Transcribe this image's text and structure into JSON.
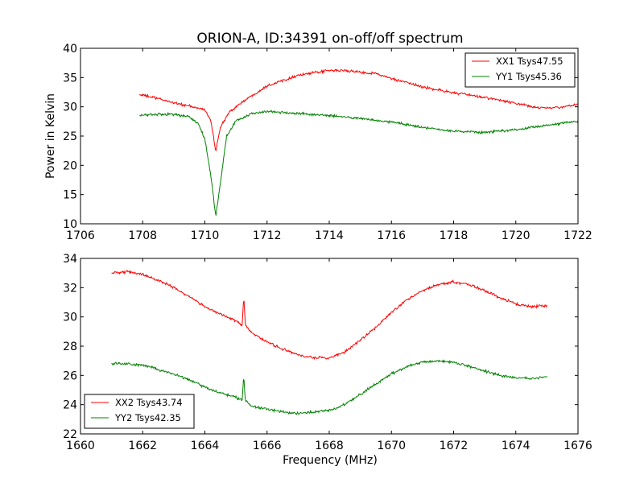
{
  "chart_data": [
    {
      "type": "line",
      "title": "ORION-A, ID:34391 on-off/off spectrum",
      "xlabel": "",
      "ylabel": "Power in Kelvin",
      "xlim": [
        1706,
        1722
      ],
      "ylim": [
        10,
        40
      ],
      "xticks": [
        "1706",
        "1708",
        "1710",
        "1712",
        "1714",
        "1716",
        "1718",
        "1720",
        "1722"
      ],
      "yticks": [
        "10",
        "15",
        "20",
        "25",
        "30",
        "35",
        "40"
      ],
      "legend_position": "top-right",
      "grid": false,
      "series": [
        {
          "name": "XX1 Tsys47.55",
          "color": "#ff0000",
          "x": [
            1707.9,
            1708.5,
            1709.0,
            1709.5,
            1710.0,
            1710.2,
            1710.35,
            1710.5,
            1710.8,
            1711.2,
            1712.0,
            1713.0,
            1714.0,
            1714.5,
            1715.0,
            1715.5,
            1716.0,
            1717.0,
            1718.0,
            1719.0,
            1720.0,
            1720.5,
            1721.0,
            1721.5,
            1722.0
          ],
          "y": [
            32.1,
            31.4,
            30.7,
            30.1,
            29.5,
            27.5,
            22.4,
            26.5,
            29.2,
            30.8,
            33.6,
            35.4,
            36.2,
            36.2,
            35.9,
            35.7,
            34.8,
            33.4,
            32.4,
            31.6,
            30.6,
            30.0,
            29.8,
            29.9,
            30.5
          ]
        },
        {
          "name": "YY1 Tsys45.36",
          "color": "#008000",
          "x": [
            1707.9,
            1708.5,
            1709.0,
            1709.5,
            1709.8,
            1710.0,
            1710.2,
            1710.35,
            1710.5,
            1710.7,
            1711.0,
            1711.5,
            1712.0,
            1713.0,
            1714.0,
            1715.0,
            1716.0,
            1717.0,
            1718.0,
            1719.0,
            1720.0,
            1721.0,
            1722.0
          ],
          "y": [
            28.6,
            28.7,
            28.7,
            28.3,
            27.0,
            24.5,
            18.0,
            11.2,
            17.0,
            25.0,
            27.6,
            28.8,
            29.2,
            28.9,
            28.5,
            28.0,
            27.4,
            26.5,
            25.8,
            25.6,
            26.1,
            26.8,
            27.6
          ]
        }
      ]
    },
    {
      "type": "line",
      "title": "",
      "xlabel": "Frequency (MHz)",
      "ylabel": "",
      "xlim": [
        1660,
        1676
      ],
      "ylim": [
        22,
        34
      ],
      "xticks": [
        "1660",
        "1662",
        "1664",
        "1666",
        "1668",
        "1670",
        "1672",
        "1674",
        "1676"
      ],
      "yticks": [
        "22",
        "24",
        "26",
        "28",
        "30",
        "32",
        "34"
      ],
      "legend_position": "bottom-left",
      "grid": false,
      "series": [
        {
          "name": "XX2 Tsys43.74",
          "color": "#ff0000",
          "x": [
            1661.0,
            1661.5,
            1662.0,
            1662.5,
            1663.0,
            1663.5,
            1664.0,
            1664.5,
            1665.0,
            1665.2,
            1665.25,
            1665.3,
            1665.5,
            1666.0,
            1666.5,
            1667.0,
            1667.5,
            1668.0,
            1668.5,
            1669.0,
            1669.5,
            1670.0,
            1670.5,
            1671.0,
            1671.5,
            1672.0,
            1672.5,
            1673.0,
            1673.5,
            1674.0,
            1674.5,
            1675.0
          ],
          "y": [
            33.0,
            33.1,
            32.9,
            32.5,
            32.0,
            31.4,
            30.7,
            30.2,
            29.7,
            29.4,
            31.4,
            29.5,
            28.9,
            28.3,
            27.8,
            27.4,
            27.2,
            27.2,
            27.6,
            28.4,
            29.3,
            30.3,
            31.2,
            31.8,
            32.2,
            32.4,
            32.2,
            31.8,
            31.3,
            30.9,
            30.7,
            30.8
          ]
        },
        {
          "name": "YY2 Tsys42.35",
          "color": "#008000",
          "x": [
            1661.0,
            1661.5,
            1662.0,
            1662.5,
            1663.0,
            1663.5,
            1664.0,
            1664.5,
            1665.0,
            1665.2,
            1665.25,
            1665.3,
            1665.5,
            1666.0,
            1666.5,
            1667.0,
            1667.5,
            1668.0,
            1668.5,
            1669.0,
            1669.5,
            1670.0,
            1670.5,
            1671.0,
            1671.5,
            1672.0,
            1672.5,
            1673.0,
            1673.5,
            1674.0,
            1674.5,
            1675.0
          ],
          "y": [
            26.8,
            26.8,
            26.7,
            26.4,
            26.1,
            25.7,
            25.2,
            24.8,
            24.5,
            24.3,
            26.0,
            24.3,
            23.9,
            23.7,
            23.5,
            23.4,
            23.5,
            23.6,
            24.0,
            24.7,
            25.4,
            26.1,
            26.6,
            26.9,
            27.0,
            26.9,
            26.6,
            26.3,
            26.0,
            25.8,
            25.8,
            25.9
          ]
        }
      ]
    }
  ]
}
